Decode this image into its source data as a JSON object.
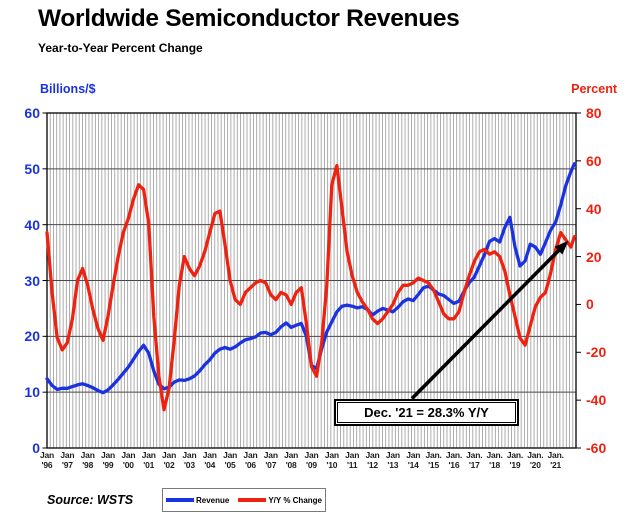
{
  "header": {
    "title": "Worldwide Semiconductor Revenues",
    "subtitle": "Year-to-Year Percent Change"
  },
  "axes": {
    "left_title": "Billions/$",
    "right_title": "Percent",
    "left_ticks": [
      60,
      50,
      40,
      30,
      20,
      10,
      0
    ],
    "right_ticks": [
      80,
      60,
      40,
      20,
      0,
      -20,
      -40,
      -60
    ],
    "x_labels": [
      {
        "month": "Jan",
        "year": "'96"
      },
      {
        "month": "Jan",
        "year": "'97"
      },
      {
        "month": "Jan",
        "year": "'98"
      },
      {
        "month": "Jan",
        "year": "'99"
      },
      {
        "month": "Jan",
        "year": "'00"
      },
      {
        "month": "Jan",
        "year": "'01"
      },
      {
        "month": "Jan",
        "year": "'02"
      },
      {
        "month": "Jan",
        "year": "'03"
      },
      {
        "month": "Jan",
        "year": "'04"
      },
      {
        "month": "Jan",
        "year": "'05"
      },
      {
        "month": "Jan",
        "year": "'06"
      },
      {
        "month": "Jan",
        "year": "'07"
      },
      {
        "month": "Jan",
        "year": "'08"
      },
      {
        "month": "Jan",
        "year": "'09"
      },
      {
        "month": "Jan",
        "year": "'10"
      },
      {
        "month": "Jan",
        "year": "'11"
      },
      {
        "month": "Jan",
        "year": "'12"
      },
      {
        "month": "Jan",
        "year": "'13"
      },
      {
        "month": "Jan",
        "year": "'14"
      },
      {
        "month": "Jan.",
        "year": "'15"
      },
      {
        "month": "Jan.",
        "year": "'16"
      },
      {
        "month": "Jan.",
        "year": "'17"
      },
      {
        "month": "Jan.",
        "year": "'18"
      },
      {
        "month": "Jan.",
        "year": "'19"
      },
      {
        "month": "Jan.",
        "year": "'20"
      },
      {
        "month": "Jan.",
        "year": "'21"
      }
    ]
  },
  "annotation": {
    "text": "Dec. '21 = 28.3% Y/Y"
  },
  "source_label": "Source: WSTS",
  "legend": {
    "items": [
      {
        "label": "Revenue",
        "color": "#1b32e0"
      },
      {
        "label": "Y/Y % Change",
        "color": "#ee2211"
      }
    ]
  },
  "colors": {
    "revenue_line": "#1b32e0",
    "yoy_line": "#ee2211",
    "left_axis_text": "#1b32e0",
    "right_axis_text": "#ee2211",
    "grid_vertical": "#a3a3a3",
    "grid_horizontal": "#474747",
    "frame": "#000000",
    "arrow": "#000000"
  },
  "chart_data": {
    "type": "line",
    "title": "Worldwide Semiconductor Revenues",
    "subtitle": "Year-to-Year Percent Change",
    "x_axis": {
      "unit": "decimal_year",
      "start": 1996.0,
      "step": 0.25,
      "points": 104,
      "labels": "Jan '96 through Jan '21"
    },
    "left_axis": {
      "label": "Billions/$",
      "min": 0,
      "max": 60,
      "grid_step": 10
    },
    "right_axis": {
      "label": "Percent",
      "min": -60,
      "max": 80,
      "tick_step": 20
    },
    "grid": {
      "vertical_dense": true,
      "horizontal_at_left_steps": true
    },
    "legend_position": "bottom-center",
    "series": [
      {
        "name": "Revenue",
        "axis": "left",
        "unit": "US$ billions per month",
        "values": [
          12.4,
          11.2,
          10.5,
          10.7,
          10.7,
          11.0,
          11.3,
          11.5,
          11.2,
          10.8,
          10.3,
          9.9,
          10.4,
          11.3,
          12.3,
          13.4,
          14.5,
          15.9,
          17.3,
          18.4,
          17.0,
          13.8,
          11.4,
          10.6,
          10.9,
          11.8,
          12.2,
          12.1,
          12.4,
          12.9,
          13.8,
          14.9,
          15.8,
          17.0,
          17.7,
          18.0,
          17.7,
          18.1,
          18.8,
          19.4,
          19.6,
          19.9,
          20.6,
          20.7,
          20.3,
          20.7,
          21.7,
          22.4,
          21.6,
          22.0,
          22.3,
          20.0,
          14.8,
          14.2,
          17.8,
          20.8,
          22.6,
          24.4,
          25.4,
          25.6,
          25.4,
          25.1,
          25.3,
          24.8,
          23.8,
          24.5,
          25.0,
          24.7,
          24.4,
          25.2,
          26.2,
          26.7,
          26.4,
          27.5,
          28.7,
          29.0,
          28.3,
          27.6,
          27.3,
          26.6,
          25.9,
          26.3,
          28.1,
          29.6,
          30.6,
          32.6,
          34.6,
          37.0,
          37.5,
          36.9,
          39.5,
          41.3,
          36.0,
          32.6,
          33.5,
          36.5,
          36.0,
          34.7,
          36.8,
          39.0,
          40.5,
          43.5,
          47.0,
          49.5
        ],
        "final_point": {
          "x": 2021.92,
          "value": 50.9
        }
      },
      {
        "name": "Y/Y % Change",
        "axis": "right",
        "unit": "percent",
        "values": [
          30,
          5,
          -14,
          -19,
          -16,
          -6,
          10,
          15,
          8,
          -2,
          -10,
          -15,
          -5,
          8,
          20,
          30,
          36,
          44,
          50,
          48,
          34,
          -5,
          -30,
          -44,
          -35,
          -15,
          8,
          20,
          15,
          12,
          16,
          22,
          30,
          38,
          39,
          25,
          10,
          2,
          0,
          5,
          7,
          9,
          10,
          9,
          4,
          2,
          5,
          4,
          0,
          5,
          7,
          -8,
          -26,
          -30,
          -16,
          8,
          50,
          58,
          40,
          22,
          12,
          5,
          1,
          -2,
          -6,
          -8,
          -6,
          -3,
          0,
          5,
          8,
          8,
          9,
          11,
          10,
          9,
          6,
          1,
          -4,
          -6,
          -6,
          -3,
          5,
          12,
          18,
          22,
          23,
          21,
          22,
          20,
          14,
          4,
          -5,
          -14,
          -17,
          -9,
          -1,
          3,
          5,
          13,
          23,
          30,
          27,
          24
        ],
        "final_point": {
          "x": 2021.92,
          "value": 28.3
        }
      }
    ],
    "annotations": [
      {
        "text": "Dec. '21 = 28.3% Y/Y",
        "target_x": 2021.92,
        "target_series": "Y/Y % Change",
        "target_value": 28.3
      }
    ]
  }
}
